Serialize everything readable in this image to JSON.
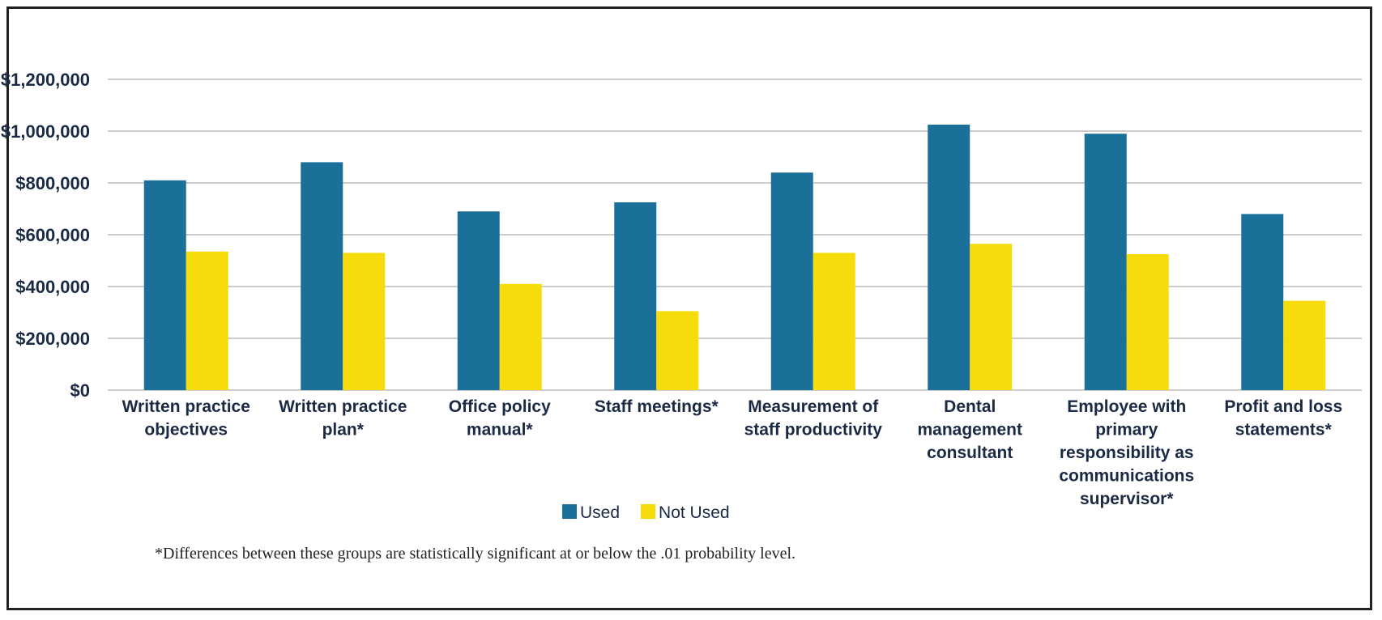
{
  "chart_data": {
    "type": "bar",
    "title": "",
    "xlabel": "",
    "ylabel": "",
    "ylim": [
      0,
      1200000
    ],
    "yticks": [
      0,
      200000,
      400000,
      600000,
      800000,
      1000000,
      1200000
    ],
    "ytick_labels": [
      "$0",
      "$200,000",
      "$400,000",
      "$600,000",
      "$800,000",
      "$1,000,000",
      "$1,200,000"
    ],
    "grid": true,
    "legend_position": "bottom",
    "categories": [
      [
        "Written practice",
        "objectives"
      ],
      [
        "Written practice",
        "plan*"
      ],
      [
        "Office policy",
        "manual*"
      ],
      [
        "Staff meetings*"
      ],
      [
        "Measurement of",
        "staff productivity"
      ],
      [
        "Dental",
        "management",
        "consultant"
      ],
      [
        "Employee with",
        "primary",
        "responsibility as",
        "communications",
        "supervisor*"
      ],
      [
        "Profit and loss",
        "statements*"
      ]
    ],
    "series": [
      {
        "name": "Used",
        "color": "#1a7099",
        "values": [
          810000,
          880000,
          690000,
          725000,
          840000,
          1025000,
          990000,
          680000
        ]
      },
      {
        "name": "Not Used",
        "color": "#f7dc0c",
        "values": [
          535000,
          530000,
          410000,
          305000,
          530000,
          565000,
          525000,
          345000
        ]
      }
    ],
    "footnote": "*Differences between these groups are statistically significant at or below the .01 probability level."
  },
  "colors": {
    "grid": "#cccccc",
    "text": "#1b2a44",
    "frame": "#222222"
  }
}
